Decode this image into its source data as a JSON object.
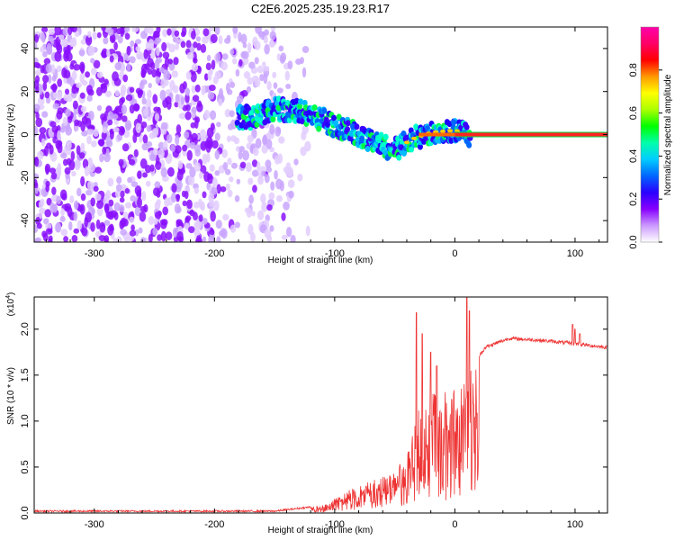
{
  "title": "C2E6.2025.235.19.23.R17",
  "chart_data": [
    {
      "type": "heatmap",
      "title": "C2E6.2025.235.19.23.R17",
      "xlabel": "Height of straight line (km)",
      "ylabel": "Frequency (Hz)",
      "xlim": [
        -350,
        127
      ],
      "ylim": [
        -50,
        50
      ],
      "xticks": [
        -300,
        -200,
        -100,
        0,
        100
      ],
      "yticks": [
        -40,
        -20,
        0,
        20,
        40
      ],
      "colorbar": {
        "label": "Normalized spectral amplitude",
        "range": [
          0,
          1
        ],
        "ticks": [
          "0.0",
          "0.2",
          "0.4",
          "0.6",
          "0.8"
        ],
        "colors": [
          "#ffffff",
          "#cc99ff",
          "#8800ff",
          "#2a00ff",
          "#0066ff",
          "#00ccff",
          "#00ffaa",
          "#00ff00",
          "#aaff00",
          "#ffff00",
          "#ff9900",
          "#ff0000",
          "#ff0066",
          "#ff00aa"
        ]
      },
      "ridge": [
        {
          "x": -170,
          "y": 8
        },
        {
          "x": -150,
          "y": 12
        },
        {
          "x": -130,
          "y": 11
        },
        {
          "x": -110,
          "y": 7
        },
        {
          "x": -90,
          "y": 2
        },
        {
          "x": -70,
          "y": -3
        },
        {
          "x": -50,
          "y": -7
        },
        {
          "x": -35,
          "y": -2
        },
        {
          "x": -20,
          "y": 1
        },
        {
          "x": 0,
          "y": 2
        },
        {
          "x": 10,
          "y": 0
        },
        {
          "x": 127,
          "y": 0
        }
      ]
    },
    {
      "type": "line",
      "title": "",
      "xlabel": "Height of straight line (km)",
      "ylabel": "SNR (10 * v/v)",
      "yscale_label": "(x10",
      "yscale_exp": "4",
      "xlim": [
        -350,
        127
      ],
      "ylim": [
        0,
        2.35
      ],
      "xticks": [
        -300,
        -200,
        -100,
        0,
        100
      ],
      "yticks": [
        "0.0",
        "0.5",
        "1.0",
        "1.5",
        "2.0"
      ],
      "color": "#ee3333",
      "envelope": [
        {
          "x": -350,
          "y": 0.02
        },
        {
          "x": -150,
          "y": 0.02
        },
        {
          "x": -110,
          "y": 0.08
        },
        {
          "x": -90,
          "y": 0.25
        },
        {
          "x": -70,
          "y": 0.35
        },
        {
          "x": -50,
          "y": 0.45
        },
        {
          "x": -38,
          "y": 0.7
        },
        {
          "x": -30,
          "y": 1.15
        },
        {
          "x": -22,
          "y": 1.3
        },
        {
          "x": -10,
          "y": 1.32
        },
        {
          "x": 5,
          "y": 1.38
        },
        {
          "x": 15,
          "y": 1.6
        },
        {
          "x": 25,
          "y": 1.8
        },
        {
          "x": 45,
          "y": 1.9
        },
        {
          "x": 70,
          "y": 1.88
        },
        {
          "x": 95,
          "y": 1.85
        },
        {
          "x": 127,
          "y": 1.8
        }
      ],
      "spikes": [
        {
          "x": -32,
          "y": 2.18
        },
        {
          "x": -27,
          "y": 1.95
        },
        {
          "x": -20,
          "y": 1.75
        },
        {
          "x": -15,
          "y": 1.6
        },
        {
          "x": 10,
          "y": 2.35
        },
        {
          "x": 12,
          "y": 2.2
        },
        {
          "x": 98,
          "y": 2.05
        },
        {
          "x": 100,
          "y": 2.0
        },
        {
          "x": 104,
          "y": 1.95
        }
      ]
    }
  ]
}
